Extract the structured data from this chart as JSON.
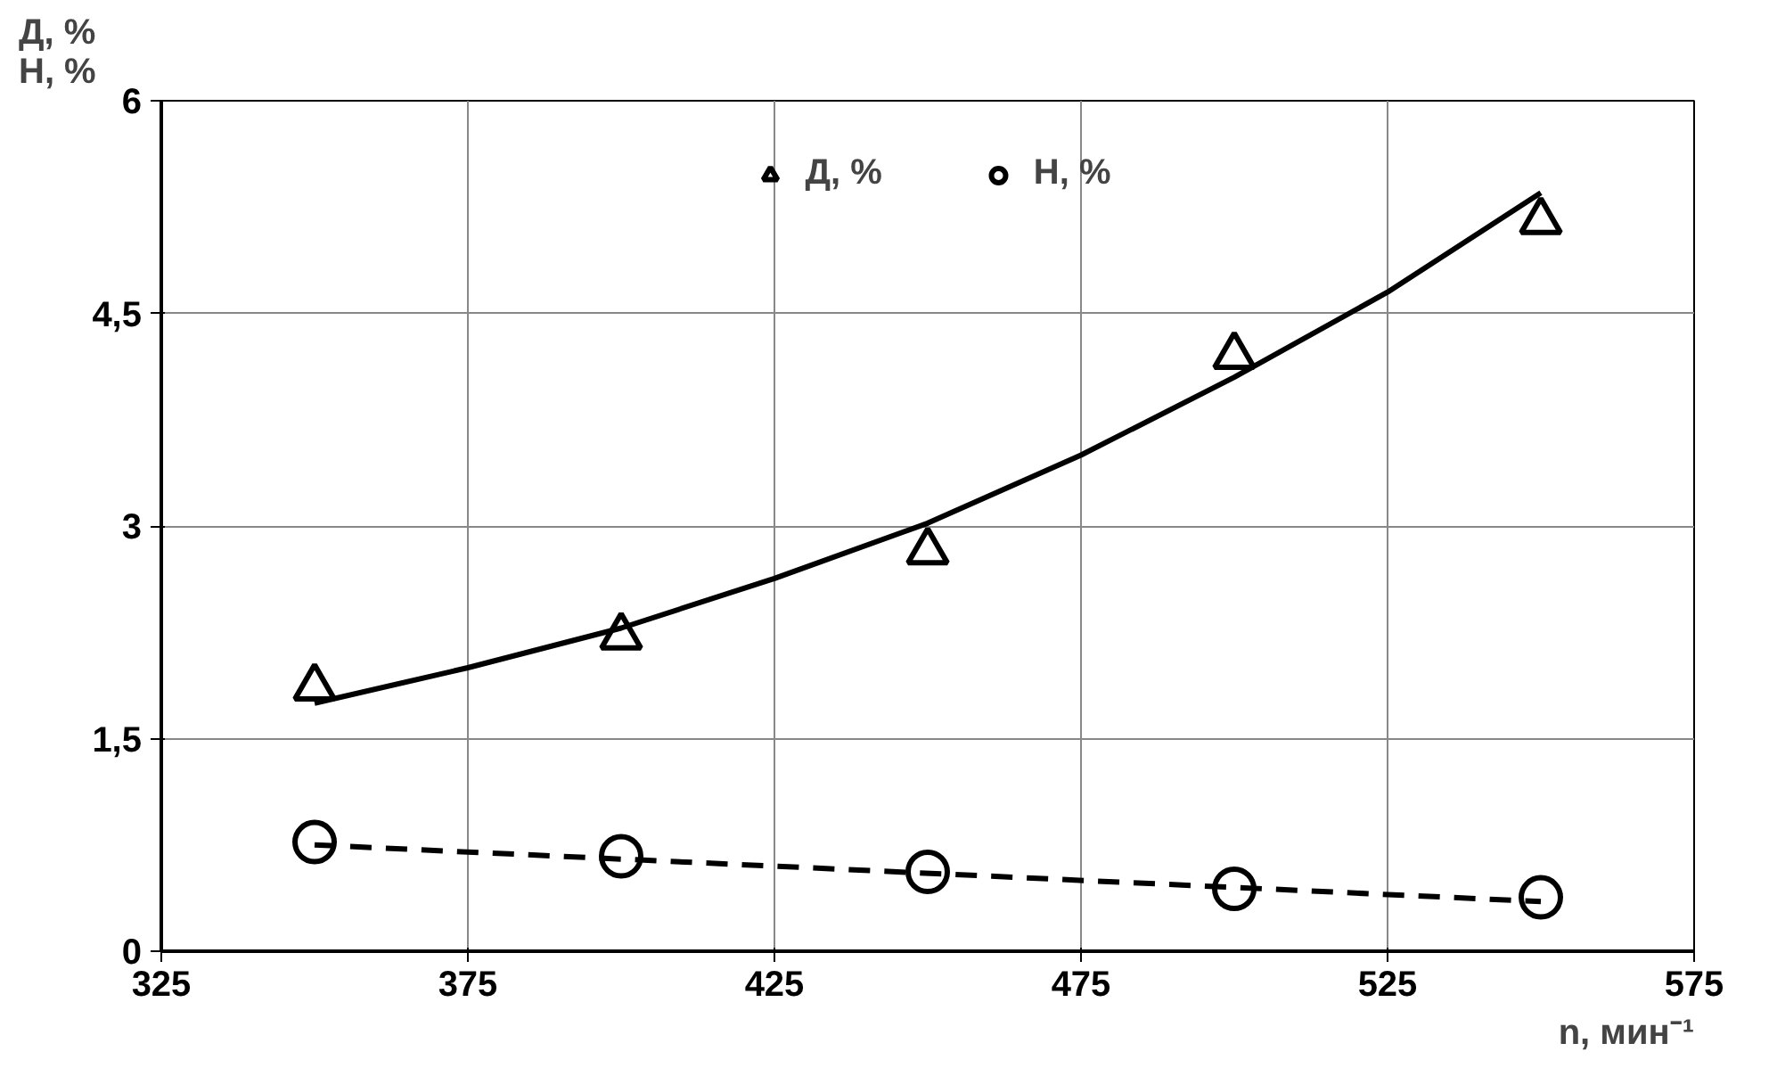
{
  "chart_data": {
    "type": "scatter",
    "ylabel": "Д, %\nН, %",
    "xlabel": "n, мин⁻¹",
    "x": [
      350,
      400,
      450,
      500,
      550
    ],
    "series": [
      {
        "name": "Д, %",
        "color": "#000000",
        "marker": "triangle",
        "values": [
          1.86,
          2.22,
          2.82,
          4.2,
          5.15
        ]
      },
      {
        "type": "line",
        "color": "#000000",
        "line_style": "solid",
        "marker": "none",
        "x": [
          350,
          375,
          400,
          425,
          450,
          475,
          500,
          525,
          550
        ],
        "values": [
          1.75,
          2.0,
          2.28,
          2.63,
          3.02,
          3.5,
          4.05,
          4.65,
          5.35
        ]
      },
      {
        "name": "Н, %",
        "color": "#000000",
        "marker": "circle",
        "values": [
          0.77,
          0.67,
          0.56,
          0.44,
          0.38
        ]
      },
      {
        "type": "line",
        "color": "#000000",
        "line_style": "dashed",
        "marker": "none",
        "x": [
          350,
          550
        ],
        "values": [
          0.75,
          0.35
        ]
      }
    ],
    "xlim": [
      325,
      575
    ],
    "xticks": [
      325,
      375,
      425,
      475,
      525,
      575
    ],
    "ylim": [
      0,
      6
    ],
    "yticks": [
      0,
      {
        "value": 1.5,
        "label": "1,5"
      },
      3,
      {
        "value": 4.5,
        "label": "4,5"
      },
      6
    ],
    "grid": true,
    "legend": "top"
  }
}
